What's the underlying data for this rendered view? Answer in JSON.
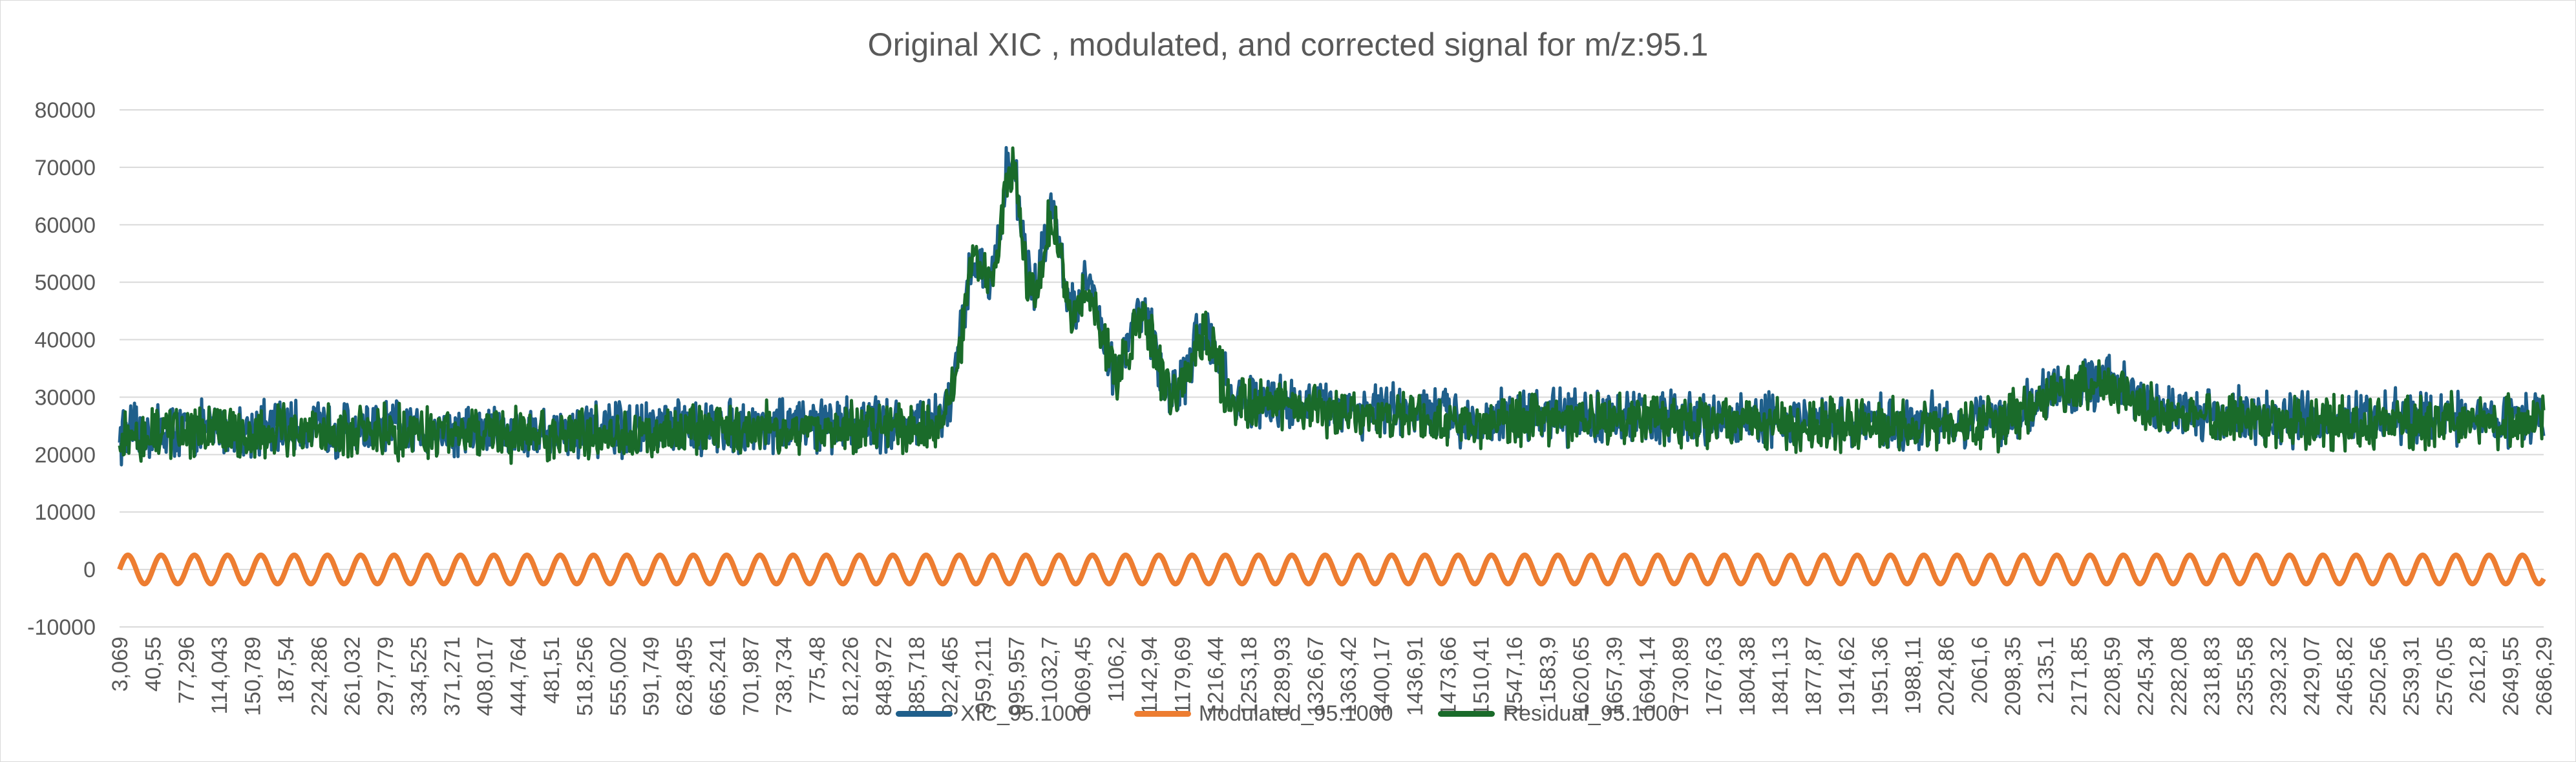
{
  "chart_data": {
    "type": "line",
    "title": "Original XIC , modulated, and corrected signal for m/z:95.1",
    "xlabel": "",
    "ylabel": "",
    "ylim": [
      -10000,
      80000
    ],
    "yticks": [
      "-10000",
      "0",
      "10000",
      "20000",
      "30000",
      "40000",
      "50000",
      "60000",
      "70000",
      "80000"
    ],
    "x_tick_labels": [
      "3,069",
      "40,55",
      "77,296",
      "114,043",
      "150,789",
      "187,54",
      "224,286",
      "261,032",
      "297,779",
      "334,525",
      "371,271",
      "408,017",
      "444,764",
      "481,51",
      "518,256",
      "555,002",
      "591,749",
      "628,495",
      "665,241",
      "701,987",
      "738,734",
      "775,48",
      "812,226",
      "848,972",
      "885,718",
      "922,465",
      "959,211",
      "995,957",
      "1032,7",
      "1069,45",
      "1106,2",
      "1142,94",
      "1179,69",
      "1216,44",
      "1253,18",
      "1289,93",
      "1326,67",
      "1363,42",
      "1400,17",
      "1436,91",
      "1473,66",
      "1510,41",
      "1547,16",
      "1583,9",
      "1620,65",
      "1657,39",
      "1694,14",
      "1730,89",
      "1767,63",
      "1804,38",
      "1841,13",
      "1877,87",
      "1914,62",
      "1951,36",
      "1988,11",
      "2024,86",
      "2061,6",
      "2098,35",
      "2135,1",
      "2171,85",
      "2208,59",
      "2245,34",
      "2282,08",
      "2318,83",
      "2355,58",
      "2392,32",
      "2429,07",
      "2465,82",
      "2502,56",
      "2539,31",
      "2576,05",
      "2612,8",
      "2649,55",
      "2686,29"
    ],
    "x_range": [
      3.069,
      2700
    ],
    "grid": true,
    "legend_position": "bottom",
    "series": [
      {
        "name": "XIC_95.1000",
        "color": "#1f5f8b",
        "baseline_profile": [
          [
            3,
            23500
          ],
          [
            100,
            24500
          ],
          [
            300,
            24500
          ],
          [
            500,
            23800
          ],
          [
            700,
            25000
          ],
          [
            900,
            25500
          ],
          [
            940,
            26500
          ],
          [
            1100,
            30500
          ],
          [
            1300,
            29000
          ],
          [
            1500,
            26500
          ],
          [
            1700,
            26500
          ],
          [
            1900,
            25500
          ],
          [
            2100,
            26000
          ],
          [
            2150,
            31000
          ],
          [
            2230,
            33000
          ],
          [
            2260,
            28000
          ],
          [
            2400,
            26000
          ],
          [
            2700,
            26500
          ]
        ],
        "peaks": [
          {
            "x": 955,
            "y": 53000,
            "label": "959,211"
          },
          {
            "x": 995,
            "y": 70000,
            "label": "995,957"
          },
          {
            "x": 1040,
            "y": 61500,
            "label": "1032,7"
          },
          {
            "x": 1082,
            "y": 49500,
            "label": "1069,45"
          },
          {
            "x": 1140,
            "y": 45000,
            "label": "1142,94"
          },
          {
            "x": 1210,
            "y": 42000,
            "label": "1216,44"
          }
        ],
        "noise_amplitude": 3500
      },
      {
        "name": "Modulated_95.1000",
        "color": "#ed7d31",
        "amplitude": 2500,
        "period": 37
      },
      {
        "name": "Residual_95.1000",
        "color": "#1a6b2a",
        "baseline_profile": [
          [
            3,
            23000
          ],
          [
            100,
            24000
          ],
          [
            300,
            24000
          ],
          [
            500,
            23300
          ],
          [
            700,
            24500
          ],
          [
            900,
            25000
          ],
          [
            940,
            26000
          ],
          [
            1100,
            30000
          ],
          [
            1300,
            28500
          ],
          [
            1500,
            26000
          ],
          [
            1700,
            26000
          ],
          [
            1900,
            25000
          ],
          [
            2100,
            25500
          ],
          [
            2150,
            30500
          ],
          [
            2230,
            32500
          ],
          [
            2260,
            27500
          ],
          [
            2400,
            25500
          ],
          [
            2700,
            26000
          ]
        ],
        "peaks": [
          {
            "x": 955,
            "y": 52500,
            "label": "959,211"
          },
          {
            "x": 995,
            "y": 69000,
            "label": "995,957"
          },
          {
            "x": 1040,
            "y": 60500,
            "label": "1032,7"
          },
          {
            "x": 1082,
            "y": 48500,
            "label": "1069,45"
          },
          {
            "x": 1140,
            "y": 44000,
            "label": "1142,94"
          },
          {
            "x": 1210,
            "y": 41000,
            "label": "1216,44"
          }
        ],
        "noise_amplitude": 3300
      }
    ]
  }
}
